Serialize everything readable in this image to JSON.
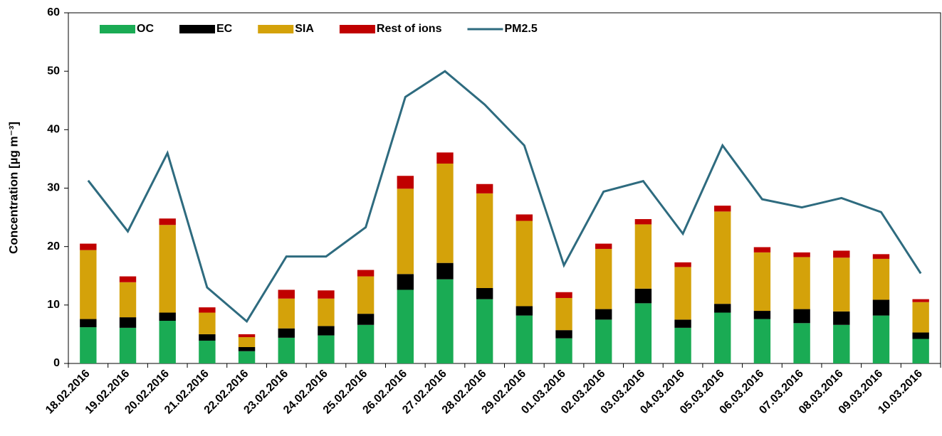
{
  "chart_data": {
    "type": "stacked-bar-line",
    "y_label": "Concentration [µg m⁻³]",
    "categories": [
      "18.02.2016",
      "19.02.2016",
      "20.02.2016",
      "21.02.2016",
      "22.02.2016",
      "23.02.2016",
      "24.02.2016",
      "25.02.2016",
      "26.02.2016",
      "27.02.2016",
      "28.02.2016",
      "29.02.2016",
      "01.03.2016",
      "02.03.2016",
      "03.03.2016",
      "04.03.2016",
      "05.03.2016",
      "06.03.2016",
      "07.03.2016",
      "08.03.2016",
      "09.03.2016",
      "10.03.2016"
    ],
    "series": [
      {
        "name": "OC",
        "type": "bar",
        "color": "#1aab54",
        "values": [
          6.2,
          6.1,
          7.3,
          3.9,
          2.1,
          4.4,
          4.8,
          6.6,
          12.6,
          14.4,
          11.0,
          8.2,
          4.3,
          7.5,
          10.3,
          6.1,
          8.7,
          7.6,
          6.9,
          6.6,
          8.2,
          4.2
        ]
      },
      {
        "name": "EC",
        "type": "bar",
        "color": "#000000",
        "values": [
          1.4,
          1.8,
          1.4,
          1.1,
          0.7,
          1.6,
          1.6,
          1.9,
          2.7,
          2.8,
          1.9,
          1.6,
          1.4,
          1.8,
          2.5,
          1.4,
          1.5,
          1.4,
          2.4,
          2.3,
          2.7,
          1.1
        ]
      },
      {
        "name": "SIA",
        "type": "bar",
        "color": "#d4a20a",
        "values": [
          11.8,
          6.0,
          15.0,
          3.7,
          1.7,
          5.1,
          4.7,
          6.4,
          14.6,
          17.0,
          16.2,
          14.6,
          5.5,
          10.3,
          11.0,
          9.0,
          15.8,
          10.0,
          8.9,
          9.2,
          7.0,
          5.2
        ]
      },
      {
        "name": "Rest of ions",
        "type": "bar",
        "color": "#c00000",
        "values": [
          1.1,
          1.0,
          1.1,
          0.9,
          0.5,
          1.5,
          1.4,
          1.1,
          2.2,
          1.9,
          1.6,
          1.1,
          1.0,
          0.9,
          0.9,
          0.8,
          1.0,
          0.9,
          0.8,
          1.2,
          0.8,
          0.5
        ]
      },
      {
        "name": "PM2.5",
        "type": "line",
        "color": "#2e6b7f",
        "values": [
          31.3,
          22.6,
          36.0,
          13.0,
          7.2,
          18.3,
          18.3,
          23.3,
          45.6,
          50.0,
          44.3,
          37.3,
          16.8,
          29.4,
          31.2,
          22.2,
          37.3,
          28.1,
          26.7,
          28.3,
          25.9,
          15.4
        ]
      }
    ],
    "ylim": [
      0,
      60
    ],
    "yticks": [
      0,
      10,
      20,
      30,
      40,
      50,
      60
    ],
    "legend": "top-left"
  }
}
